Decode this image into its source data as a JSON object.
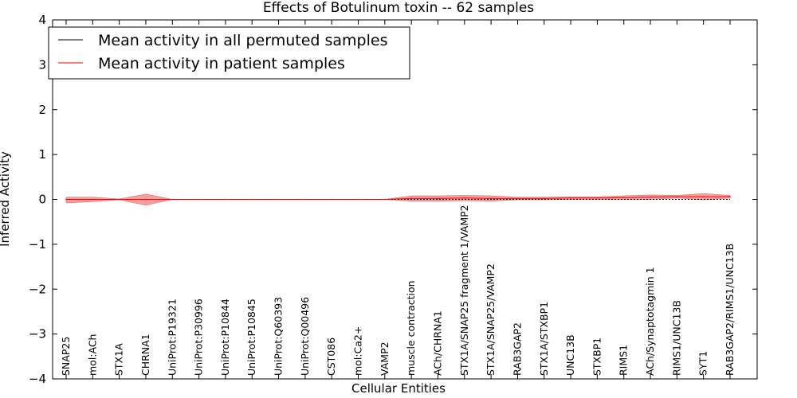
{
  "chart_data": {
    "type": "line",
    "title": "Effects of Botulinum toxin -- 62 samples",
    "xlabel": "Cellular Entities",
    "ylabel": "Inferred Activity",
    "ylim": [
      -4,
      4
    ],
    "yticks": [
      4,
      3,
      2,
      1,
      0,
      -1,
      -2,
      -3,
      -4
    ],
    "ytick_labels": [
      "4",
      "3",
      "2",
      "1",
      "0",
      "−1",
      "−2",
      "−3",
      "−4"
    ],
    "categories": [
      "SNAP25",
      "mol:ACh",
      "STX1A",
      "CHRNA1",
      "UniProt:P19321",
      "UniProt:P30996",
      "UniProt:P10844",
      "UniProt:P10845",
      "UniProt:Q60393",
      "UniProt:Q00496",
      "CST086",
      "mol:Ca2+",
      "VAMP2",
      "muscle contraction",
      "ACh/CHRNA1",
      "STX1A/SNAP25 fragment 1/VAMP2",
      "STX1A/SNAP25/VAMP2",
      "RAB3GAP2",
      "STX1A/STXBP1",
      "UNC13B",
      "STXBP1",
      "RIMS1",
      "ACh/Synaptotagmin 1",
      "RIMS1/UNC13B",
      "SYT1",
      "RAB3GAP2/RIMS1/UNC13B"
    ],
    "legend_position": "top-left",
    "series": [
      {
        "name": "Mean activity in all permuted samples",
        "color": "#000000",
        "style": "solid",
        "values": [
          0.0,
          0.0,
          0.0,
          0.0,
          0.0,
          0.0,
          0.0,
          0.0,
          0.0,
          0.0,
          0.0,
          0.0,
          0.0,
          0.0,
          0.0,
          0.0,
          0.0,
          0.0,
          0.0,
          0.0,
          0.0,
          0.0,
          0.0,
          0.0,
          0.0,
          0.0
        ]
      },
      {
        "name": "Mean activity in patient samples",
        "color": "#ff0000",
        "style": "solid",
        "values": [
          0.0,
          0.0,
          0.0,
          0.0,
          0.0,
          0.0,
          0.0,
          0.0,
          0.0,
          0.0,
          0.0,
          0.0,
          0.0,
          0.02,
          0.02,
          0.03,
          0.02,
          0.02,
          0.02,
          0.03,
          0.03,
          0.04,
          0.05,
          0.06,
          0.06,
          0.06
        ],
        "band_lower": [
          -0.08,
          -0.05,
          -0.01,
          -0.13,
          0.0,
          0.0,
          0.0,
          0.0,
          0.0,
          0.0,
          0.0,
          0.0,
          0.0,
          -0.04,
          -0.04,
          -0.03,
          -0.04,
          -0.01,
          -0.01,
          0.0,
          0.0,
          0.0,
          0.0,
          0.03,
          -0.01,
          0.03
        ],
        "band_upper": [
          0.05,
          0.05,
          0.01,
          0.12,
          0.0,
          0.0,
          0.0,
          0.0,
          0.0,
          0.0,
          0.0,
          0.0,
          0.0,
          0.08,
          0.08,
          0.09,
          0.08,
          0.05,
          0.05,
          0.06,
          0.06,
          0.08,
          0.1,
          0.09,
          0.13,
          0.09
        ]
      }
    ]
  }
}
